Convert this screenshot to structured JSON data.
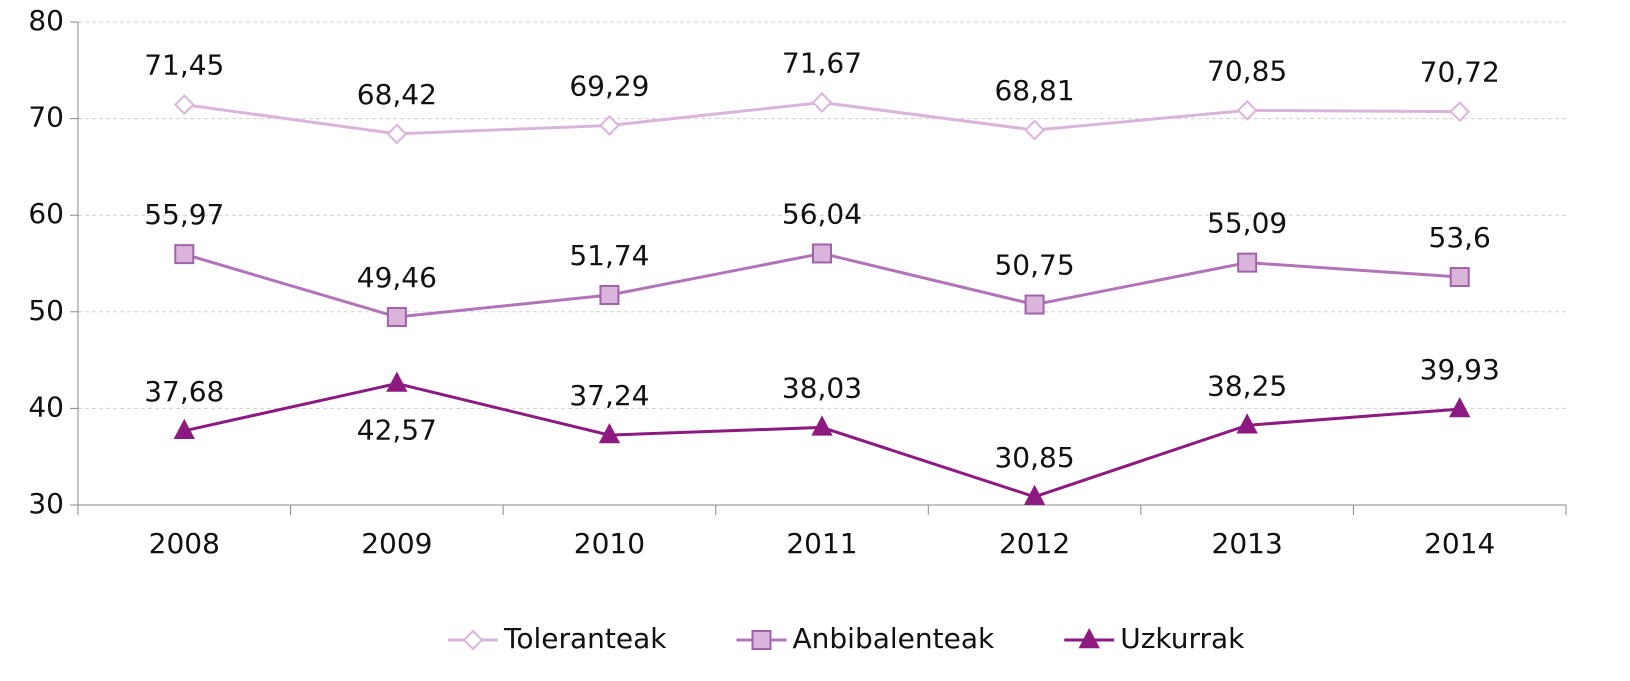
{
  "chart_data": {
    "type": "line",
    "categories": [
      "2008",
      "2009",
      "2010",
      "2011",
      "2012",
      "2013",
      "2014"
    ],
    "series": [
      {
        "name": "Toleranteak",
        "color": "#dbb4dc",
        "marker": "diamond",
        "marker_fill": "#ffffff",
        "values": [
          71.45,
          68.42,
          69.29,
          71.67,
          68.81,
          70.85,
          70.72
        ],
        "value_labels": [
          "71,45",
          "68,42",
          "69,29",
          "71,67",
          "68,81",
          "70,85",
          "70,72"
        ]
      },
      {
        "name": "Anbibalenteak",
        "color": "#b274b9",
        "marker": "square",
        "marker_fill": "#dbb4dc",
        "values": [
          55.97,
          49.46,
          51.74,
          56.04,
          50.75,
          55.09,
          53.6
        ],
        "value_labels": [
          "55,97",
          "49,46",
          "51,74",
          "56,04",
          "50,75",
          "55,09",
          "53,6"
        ]
      },
      {
        "name": "Uzkurrak",
        "color": "#8c1a80",
        "marker": "triangle",
        "marker_fill": "#8c1a80",
        "values": [
          37.68,
          42.57,
          37.24,
          38.03,
          30.85,
          38.25,
          39.93
        ],
        "value_labels": [
          "37,68",
          "42,57",
          "37,24",
          "38,03",
          "30,85",
          "38,25",
          "39,93"
        ]
      }
    ],
    "ylim": [
      30,
      80
    ],
    "yticks": [
      30,
      40,
      50,
      60,
      70,
      80
    ],
    "grid": true,
    "legend": "bottom"
  }
}
